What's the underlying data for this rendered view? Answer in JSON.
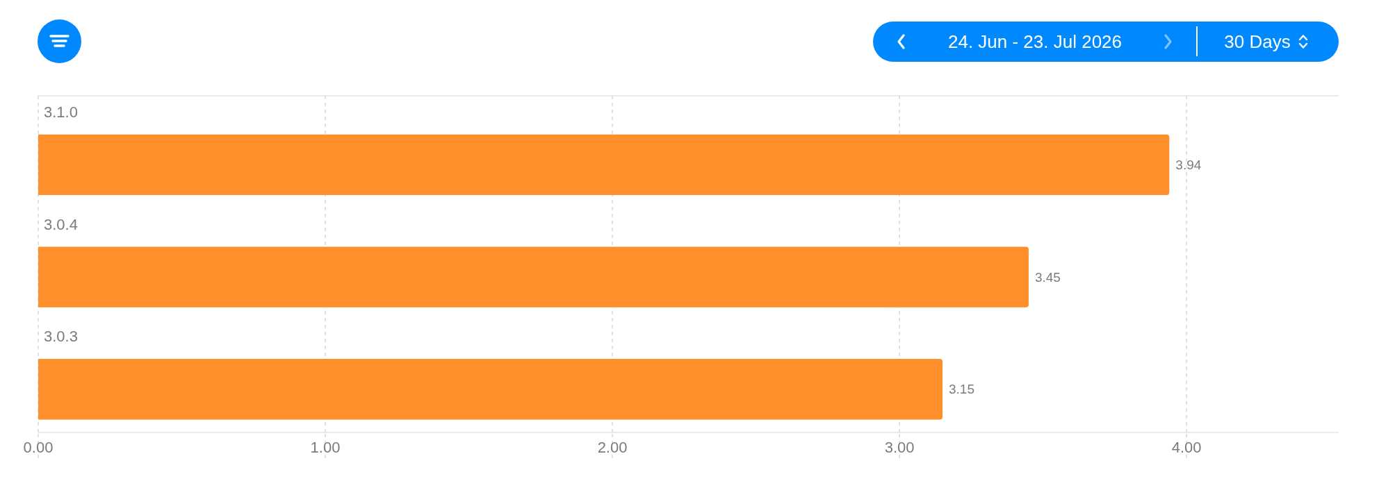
{
  "chart_data": {
    "type": "bar",
    "orientation": "horizontal",
    "subtitle": "24. Jun - 23. Jul 2026",
    "annotations": [
      "30 Days"
    ],
    "categories": [
      "3.1.0",
      "3.0.4",
      "3.0.3"
    ],
    "values": [
      3.94,
      3.45,
      3.15
    ],
    "color": "#fe8f2a",
    "xlim": [
      0,
      4.53
    ],
    "xticks": [
      {
        "value": 0,
        "label": "0.00"
      },
      {
        "value": 1,
        "label": "1.00"
      },
      {
        "value": 2,
        "label": "2.00"
      },
      {
        "value": 3,
        "label": "3.00"
      },
      {
        "value": 4,
        "label": "4.00"
      }
    ],
    "grid": "x",
    "data_labels": true
  }
}
